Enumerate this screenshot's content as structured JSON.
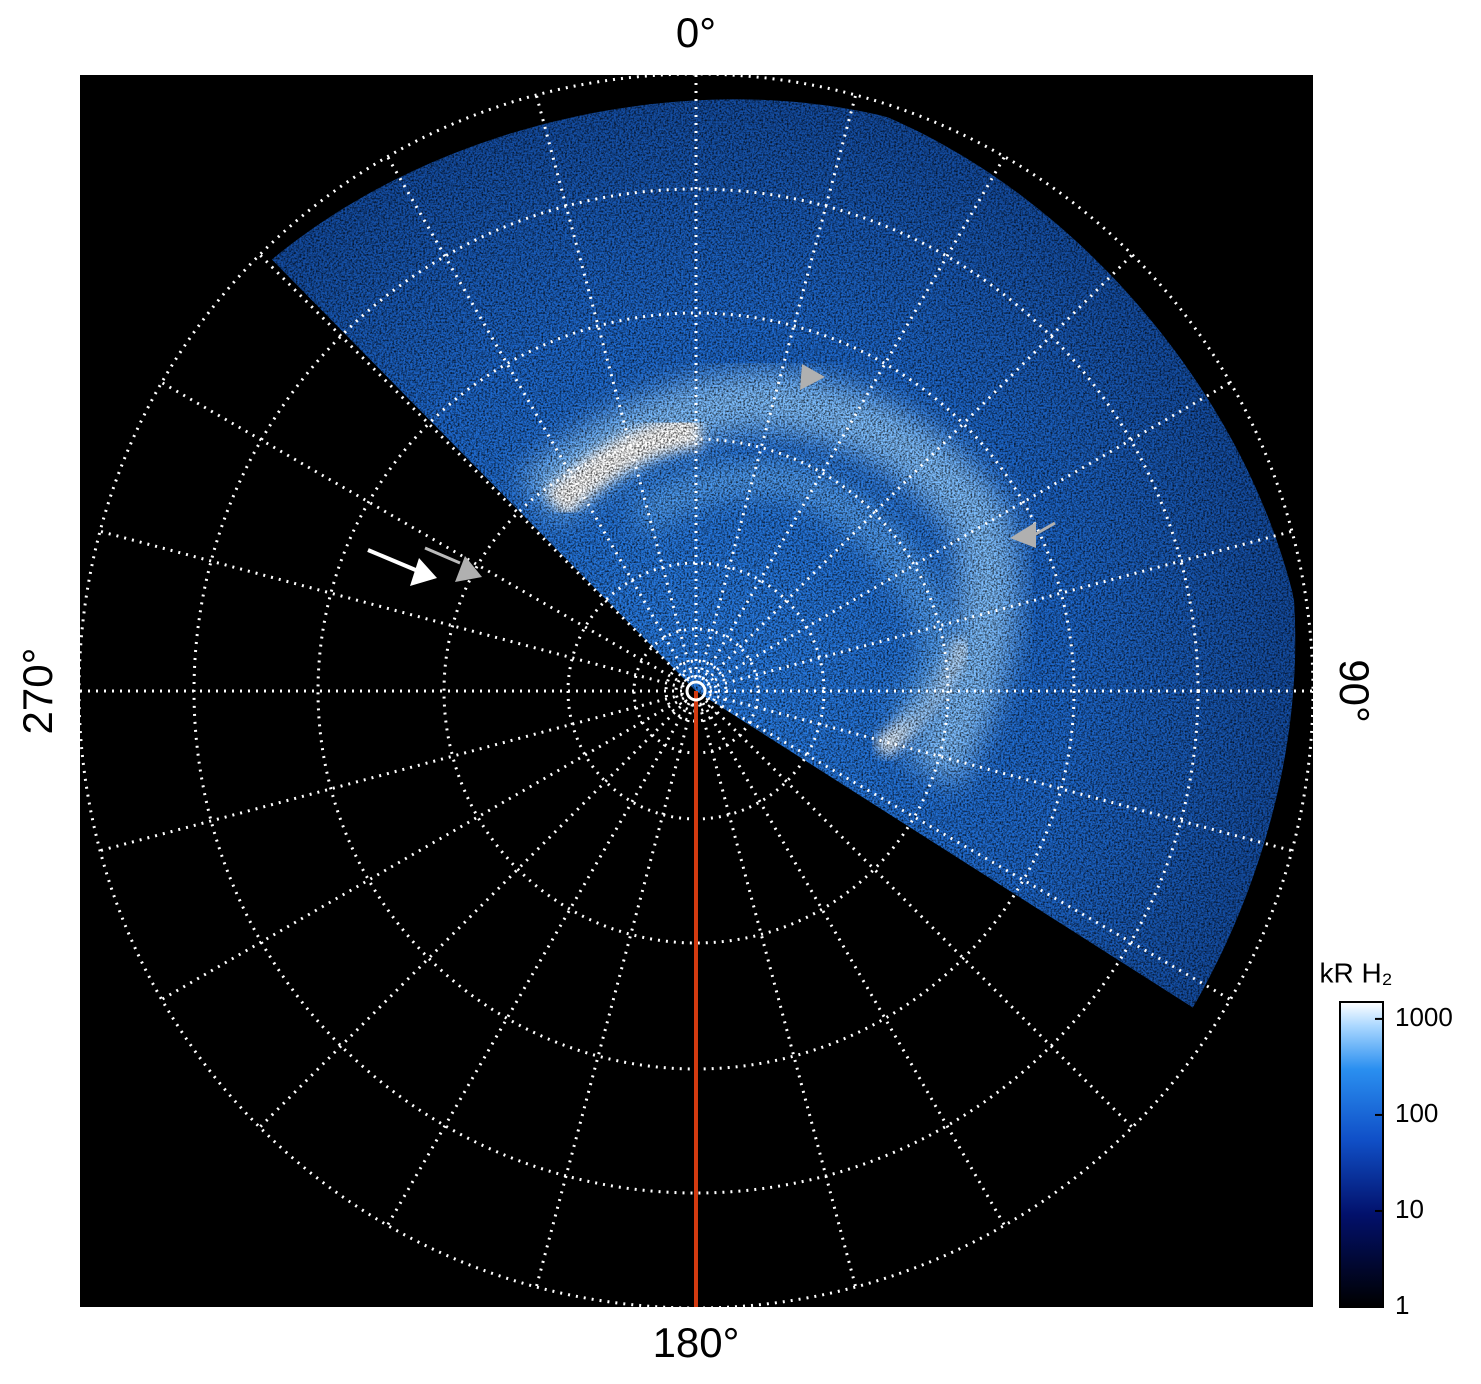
{
  "chart_data": {
    "type": "polar-image",
    "angle_ticks": [
      {
        "value": 0,
        "label": "0°"
      },
      {
        "value": 90,
        "label": "90°"
      },
      {
        "value": 180,
        "label": "180°"
      },
      {
        "value": 270,
        "label": "270°"
      }
    ],
    "colorbar": {
      "label": "kR H₂",
      "clim": [
        1,
        1500
      ],
      "log": true,
      "ticks": [
        1,
        10,
        100,
        1000
      ]
    }
  }
}
